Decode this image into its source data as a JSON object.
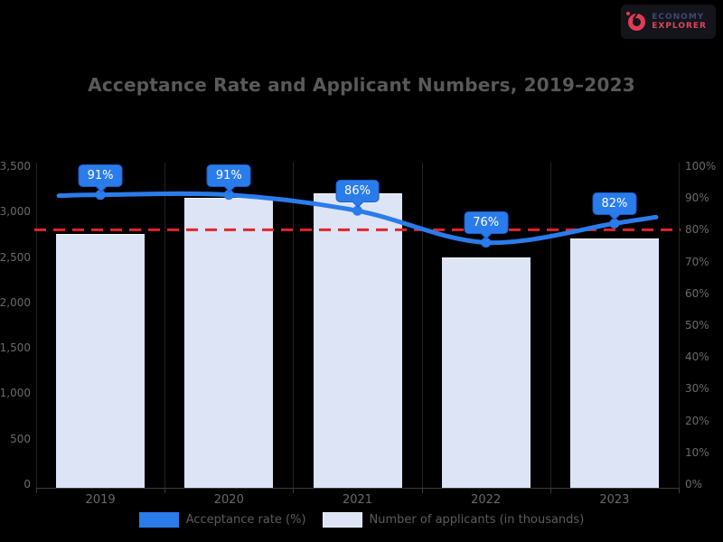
{
  "page": {
    "background": "#000000"
  },
  "logo": {
    "line1": "ECONOMY",
    "line2": "EXPLORER"
  },
  "colors": {
    "accent": "#2B7CEB",
    "accent_border": "#1A5FD0",
    "bar_fill": "#DCE4F5",
    "bar_top": "#F4F7FD",
    "threshold": "#E3252B",
    "text_title": "#595959",
    "text_axis": "#6A6A6A",
    "text_legend": "#5C5C5C",
    "grid": "#232323",
    "axis_line": "#3C3C3C",
    "logo_bg": "#14141B",
    "logo_red": "#E23B55",
    "logo_navy": "#3C4A6E",
    "logo_pink": "#D94760"
  },
  "chart_data": {
    "type": "bar",
    "subtype": "combo-bar-line-dual-axis",
    "title": "Acceptance Rate and Applicant Numbers, 2019–2023",
    "categories": [
      "2019",
      "2020",
      "2021",
      "2022",
      "2023"
    ],
    "series": [
      {
        "name": "Acceptance rate (%)",
        "type": "line",
        "axis": "right",
        "color": "#2B7CEB",
        "values": [
          91,
          91,
          86,
          76,
          82
        ],
        "point_labels": [
          "91%",
          "91%",
          "86%",
          "76%",
          "82%"
        ]
      },
      {
        "name": "Number of applicants (in thousands)",
        "type": "bar",
        "axis": "left",
        "color": "#DCE4F5",
        "values": [
          2750,
          3150,
          3200,
          2500,
          2700
        ]
      }
    ],
    "threshold_line": {
      "value": 80,
      "axis": "right",
      "color": "#E3252B",
      "style": "dashed"
    },
    "left_axis": {
      "min": 0,
      "max": 3500,
      "step": 500,
      "labels": [
        "0",
        "500",
        "1,000",
        "1,500",
        "2,000",
        "2,500",
        "3,000",
        "3,500"
      ]
    },
    "right_axis": {
      "min": 0,
      "max": 100,
      "step": 10,
      "labels": [
        "0%",
        "10%",
        "20%",
        "30%",
        "40%",
        "50%",
        "60%",
        "70%",
        "80%",
        "90%",
        "100%"
      ]
    },
    "grid": "vertical-category-boundaries",
    "legend_position": "bottom"
  }
}
